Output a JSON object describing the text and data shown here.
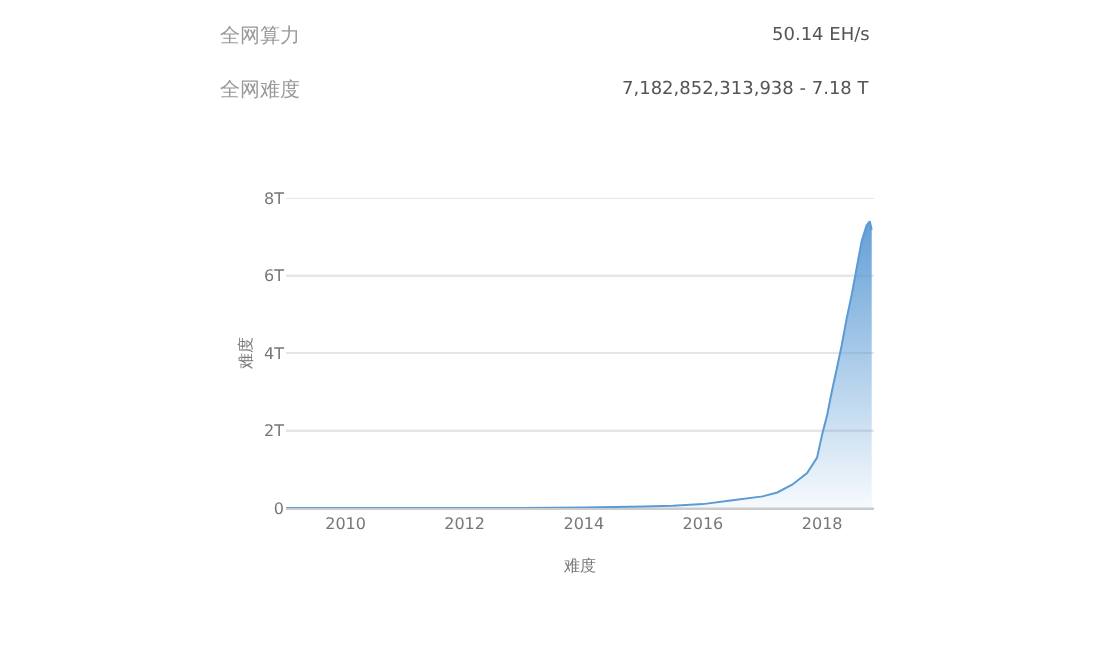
{
  "chart_data": {
    "type": "area",
    "xlabel": "难度",
    "ylabel": "难度",
    "annotations": [
      "全网算力",
      "50.14 EH/s",
      "全网难度",
      "7,182,852,313,938 - 7.18 T"
    ],
    "x": [
      "2009-01-03",
      "2010-01-01",
      "2011-01-01",
      "2012-01-01",
      "2013-01-01",
      "2014-01-01",
      "2015-01-01",
      "2015-07-01",
      "2016-01-01",
      "2016-07-01",
      "2017-01-01",
      "2017-04-01",
      "2017-07-01",
      "2017-10-01",
      "2017-12-01",
      "2018-01-01",
      "2018-02-01",
      "2018-03-01",
      "2018-04-01",
      "2018-05-01",
      "2018-06-01",
      "2018-07-01",
      "2018-08-01",
      "2018-09-01",
      "2018-10-01",
      "2018-10-20",
      "2018-11-01"
    ],
    "series": [
      {
        "color": "#5b9bd5",
        "values": [
          0,
          0,
          0,
          0,
          0,
          0.01,
          0.04,
          0.06,
          0.1,
          0.2,
          0.3,
          0.4,
          0.6,
          0.9,
          1.3,
          1.9,
          2.4,
          3.0,
          3.6,
          4.2,
          4.9,
          5.5,
          6.2,
          6.9,
          7.3,
          7.4,
          7.18
        ]
      }
    ],
    "xlim": [
      "2009-01-01",
      "2018-11-15"
    ],
    "xticks": [
      {
        "value": "2010-01-01",
        "label": "2010"
      },
      {
        "value": "2012-01-01",
        "label": "2012"
      },
      {
        "value": "2014-01-01",
        "label": "2014"
      },
      {
        "value": "2016-01-01",
        "label": "2016"
      },
      {
        "value": "2018-01-01",
        "label": "2018"
      }
    ],
    "ylim": [
      0,
      8
    ],
    "yticks": [
      {
        "value": 0,
        "label": "0"
      },
      {
        "value": 2,
        "label": "2T"
      },
      {
        "value": 4,
        "label": "4T"
      },
      {
        "value": 6,
        "label": "6T"
      },
      {
        "value": 8,
        "label": "8T"
      }
    ],
    "grid": "y"
  }
}
